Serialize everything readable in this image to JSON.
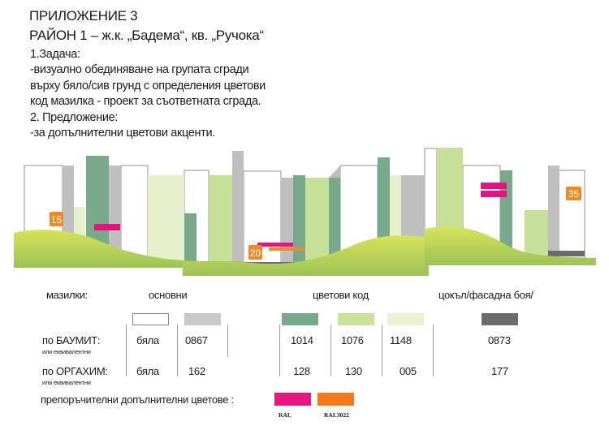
{
  "header": {
    "title": "ПРИЛОЖЕНИЕ 3",
    "subtitle": "РАЙОН 1 – ж.к. „Бадема“, кв. „Ручока“",
    "lines": [
      "1.Задача:",
      "-визуално обединяване на групата сгради",
      "върху бяло/сив грунд с определения цветови",
      "код  мазилка - проект за съответната сграда.",
      "2. Предложение:",
      "-за  допълнителни цветови акценти."
    ]
  },
  "illustration": {
    "labels": [
      "15",
      "20",
      "35"
    ],
    "colors": {
      "white": "#ffffff",
      "gray": "#bfbfbf",
      "dark_green": "#79a98b",
      "light_green": "#c6e09a",
      "pale_green": "#e6f0cc",
      "dark_gray": "#6b6b6d",
      "magenta": "#e4137f",
      "orange": "#f08a24",
      "hill": "#a9c95a"
    }
  },
  "table": {
    "headings": {
      "plasters": "мазилки:",
      "basic": "основни",
      "color_code": "цветови код",
      "plinth": "цокъл/фасадна боя/"
    },
    "swatches": [
      "#ffffff",
      "#c8c8c8",
      "#79a98b",
      "#c9e39b",
      "#eaf3cf",
      "#6c6c6e"
    ],
    "rows": [
      {
        "label": "по БАУМИТ:",
        "sub": "или еквивалентни",
        "values": [
          "бяла",
          "0867",
          "1014",
          "1076",
          "1148",
          "0873"
        ]
      },
      {
        "label": "по ОРГАХИМ:",
        "sub": "или еквивалентни",
        "values": [
          "бяла",
          "162",
          "128",
          "130",
          "005",
          "177"
        ]
      }
    ],
    "extra": {
      "label": "препоръчителни допълнителни цветове :",
      "colors": [
        {
          "hex": "#e6167f",
          "code": "RAL"
        },
        {
          "hex": "#f47a1c",
          "code": "RAL3022"
        }
      ]
    }
  }
}
